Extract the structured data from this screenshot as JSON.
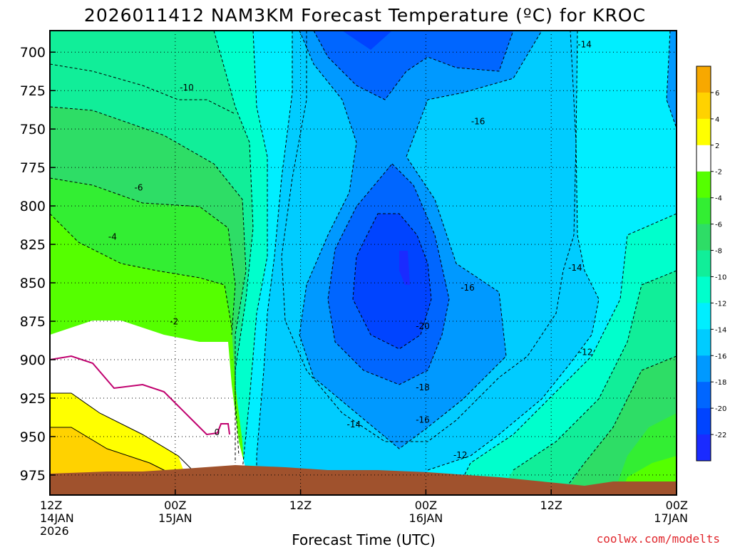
{
  "chart_data": {
    "type": "contour",
    "title": "2026011412 NAM3KM Forecast Temperature (ºC) for KROC",
    "xlabel": "Forecast Time (UTC)",
    "ylabel": "",
    "credit": "coolwx.com/modelts",
    "x_ticks": [
      {
        "hours": 0,
        "line1": "12Z",
        "line2": "14JAN",
        "line3": "2026"
      },
      {
        "hours": 12,
        "line1": "00Z",
        "line2": "15JAN",
        "line3": ""
      },
      {
        "hours": 24,
        "line1": "12Z",
        "line2": "",
        "line3": ""
      },
      {
        "hours": 36,
        "line1": "00Z",
        "line2": "16JAN",
        "line3": ""
      },
      {
        "hours": 48,
        "line1": "12Z",
        "line2": "",
        "line3": ""
      },
      {
        "hours": 60,
        "line1": "00Z",
        "line2": "17JAN",
        "line3": ""
      }
    ],
    "y_ticks": [
      700,
      725,
      750,
      775,
      800,
      825,
      850,
      875,
      900,
      925,
      950,
      975
    ],
    "ylim": [
      988,
      686
    ],
    "xlim": [
      0,
      60
    ],
    "grid": true,
    "colorbar": {
      "ticks": [
        "6",
        "4",
        "2",
        "-2",
        "-4",
        "-6",
        "-8",
        "-10",
        "-12",
        "-14",
        "-16",
        "-18",
        "-20",
        "-22"
      ],
      "bands": [
        "#f7a800",
        "#ffd200",
        "#ffff00",
        "#ffffff",
        "#55ff00",
        "#33ee33",
        "#2edd66",
        "#11ee99",
        "#00ffcc",
        "#00eeff",
        "#00ccff",
        "#0099ff",
        "#0066ff",
        "#0044ff",
        "#1a2bff"
      ]
    },
    "contour_labels": [
      {
        "text": "-14",
        "hours": 51.2,
        "hpa": 697
      },
      {
        "text": "-10",
        "hours": 13.1,
        "hpa": 725
      },
      {
        "text": "-16",
        "hours": 41.0,
        "hpa": 747
      },
      {
        "text": "-6",
        "hours": 8.5,
        "hpa": 790
      },
      {
        "text": "-4",
        "hours": 6.0,
        "hpa": 822
      },
      {
        "text": "-14",
        "hours": 50.3,
        "hpa": 842
      },
      {
        "text": "-16",
        "hours": 40.0,
        "hpa": 855
      },
      {
        "text": "-2",
        "hours": 11.9,
        "hpa": 877
      },
      {
        "text": "-20",
        "hours": 35.7,
        "hpa": 880
      },
      {
        "text": "-12",
        "hours": 51.3,
        "hpa": 897
      },
      {
        "text": "-18",
        "hours": 35.7,
        "hpa": 920
      },
      {
        "text": "-14",
        "hours": 29.1,
        "hpa": 944
      },
      {
        "text": "-16",
        "hours": 35.7,
        "hpa": 941
      },
      {
        "text": "0",
        "hours": 16.0,
        "hpa": 949
      },
      {
        "text": "-12",
        "hours": 39.3,
        "hpa": 964
      }
    ],
    "colors": {
      "terrain": "#a0522d",
      "freezing_line": "#c0006e"
    }
  }
}
